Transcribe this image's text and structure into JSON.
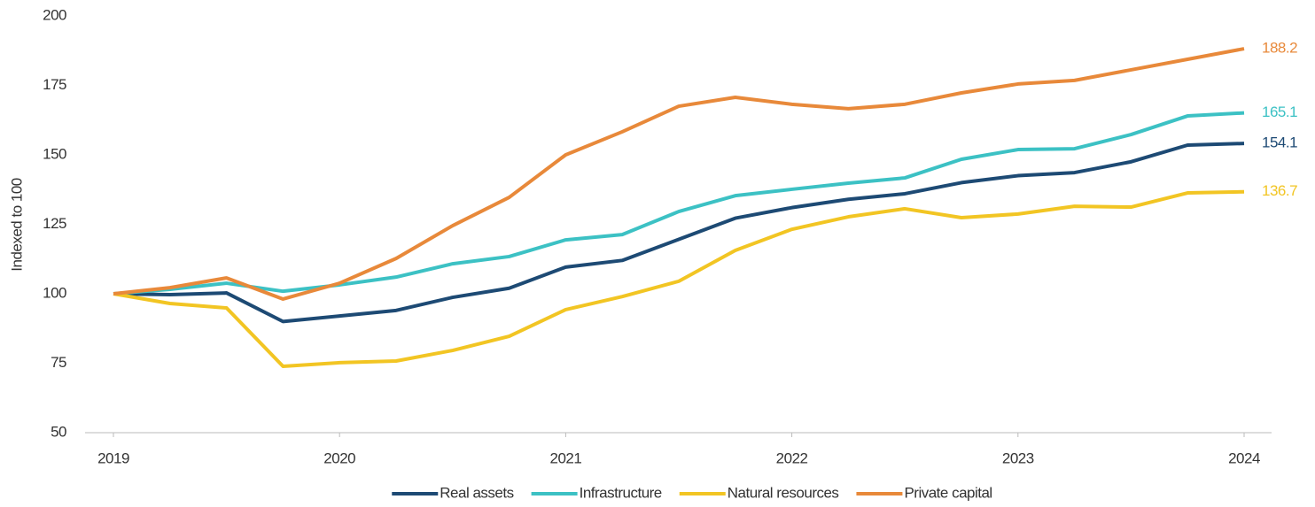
{
  "chart_data": {
    "type": "line",
    "y_label": "Indexed to 100",
    "x": [
      2019,
      2019.25,
      2019.5,
      2019.75,
      2020,
      2020.25,
      2020.5,
      2020.75,
      2021,
      2021.25,
      2021.5,
      2021.75,
      2022,
      2022.25,
      2022.5,
      2022.75,
      2023,
      2023.25,
      2023.5,
      2023.75,
      2024
    ],
    "xlim": [
      2019,
      2024
    ],
    "xticks": [
      2019,
      2020,
      2021,
      2022,
      2023,
      2024
    ],
    "ylim": [
      50,
      200
    ],
    "yticks": [
      50,
      75,
      100,
      125,
      150,
      175,
      200
    ],
    "legend": "bottom",
    "series": [
      {
        "name": "Real assets",
        "color": "#1d4a74",
        "values": [
          100,
          99.7,
          100.3,
          90,
          92,
          94,
          98.7,
          102,
          109.6,
          112,
          119.6,
          127.2,
          131,
          134,
          136,
          140,
          142.5,
          143.6,
          147.5,
          153.5,
          154.1
        ]
      },
      {
        "name": "Infrastructure",
        "color": "#3cc1c4",
        "values": [
          100,
          101.6,
          103.8,
          100.9,
          103.2,
          106,
          110.8,
          113.4,
          119.4,
          121.3,
          129.6,
          135.3,
          137.6,
          139.8,
          141.7,
          148.4,
          151.9,
          152.2,
          157.3,
          164,
          165.1
        ]
      },
      {
        "name": "Natural resources",
        "color": "#f2c523",
        "values": [
          100,
          96.5,
          94.9,
          73.9,
          75.2,
          75.8,
          79.6,
          84.7,
          94.3,
          99,
          104.5,
          115.6,
          123.2,
          127.7,
          130.6,
          127.4,
          128.7,
          131.5,
          131.2,
          136.3,
          136.7
        ]
      },
      {
        "name": "Private capital",
        "color": "#e8893a",
        "values": [
          100,
          102.2,
          105.7,
          98.1,
          103.8,
          112.7,
          124.5,
          134.7,
          150,
          158.3,
          167.5,
          170.7,
          168.2,
          166.6,
          168.2,
          172.3,
          175.5,
          176.8,
          180.6,
          184.4,
          188.2
        ]
      }
    ]
  }
}
